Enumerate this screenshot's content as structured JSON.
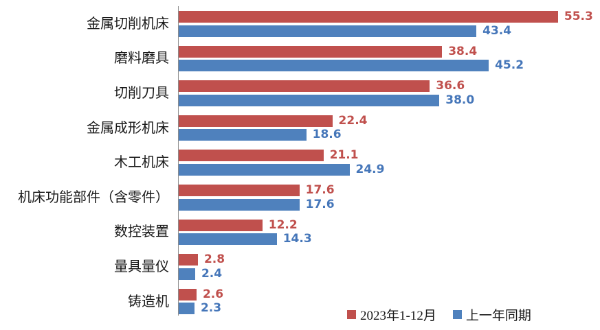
{
  "chart_data": {
    "type": "bar",
    "orientation": "horizontal",
    "title": "",
    "xlabel": "",
    "ylabel": "",
    "grid": false,
    "value_labels": true,
    "value_label_format": "one-decimal",
    "legend_position": "bottom-right",
    "xlim": [
      0,
      58
    ],
    "categories": [
      "金属切削机床",
      "磨料磨具",
      "切削刀具",
      "金属成形机床",
      "木工机床",
      "机床功能部件（含零件）",
      "数控装置",
      "量具量仪",
      "铸造机"
    ],
    "series": [
      {
        "name": "2023年1-12月",
        "color": "#c0504d",
        "label_color": "#c0504d",
        "values": [
          55.3,
          38.4,
          36.6,
          22.4,
          21.1,
          17.6,
          12.2,
          2.8,
          2.6
        ]
      },
      {
        "name": "上一年同期",
        "color": "#4f81bd",
        "label_color": "#4576b9",
        "values": [
          43.4,
          45.2,
          38.0,
          18.6,
          24.9,
          17.6,
          14.3,
          2.4,
          2.3
        ]
      }
    ]
  },
  "legend": {
    "series1": "2023年1-12月",
    "series2": "上一年同期"
  },
  "colors": {
    "axis_line": "#8c8c8c",
    "category_text": "#1a1a1a",
    "background": "#ffffff"
  }
}
